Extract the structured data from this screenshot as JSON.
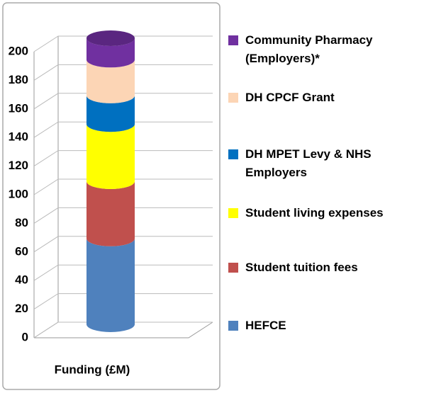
{
  "chart_data": {
    "type": "stacked-bar",
    "categories": [
      "Funding (£M)"
    ],
    "series": [
      {
        "name": "HEFCE",
        "color": "#4f81bd",
        "values": [
          60
        ]
      },
      {
        "name": "Student tuition fees",
        "color": "#c0504d",
        "values": [
          40
        ]
      },
      {
        "name": "Student living expenses",
        "color": "#ffff00",
        "values": [
          40
        ]
      },
      {
        "name": "DH MPET Levy & NHS Employers",
        "color": "#0070c0",
        "values": [
          20
        ]
      },
      {
        "name": "DH CPCF Grant",
        "color": "#fcd5b5",
        "values": [
          25
        ]
      },
      {
        "name": "Community Pharmacy (Employers)*",
        "color": "#7030a0",
        "values": [
          15
        ]
      }
    ],
    "ylim": [
      0,
      200
    ],
    "yticks": [
      0,
      20,
      40,
      60,
      80,
      100,
      120,
      140,
      160,
      180,
      200
    ],
    "grid": true
  }
}
